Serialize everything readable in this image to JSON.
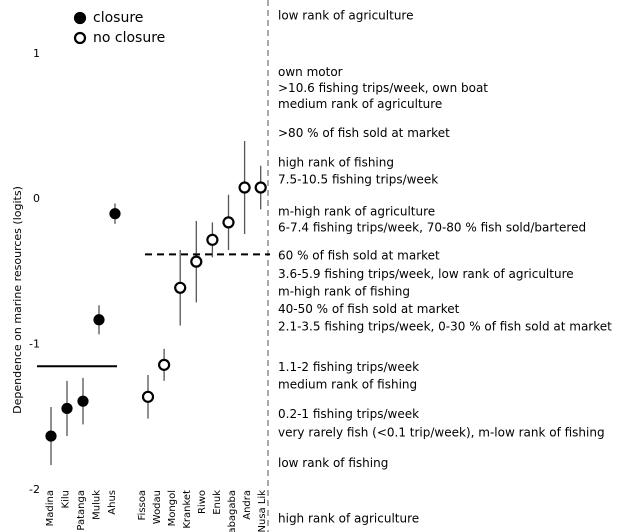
{
  "chart_data": {
    "type": "errorbar",
    "ylabel": "Dependence on marine resources (logits)",
    "ylim": [
      -2.29,
      1.37
    ],
    "yticks": [
      1,
      0,
      -1,
      -2
    ],
    "series": [
      {
        "name": "closure",
        "color": "#000000",
        "marker": "filled",
        "categories": [
          "Madina",
          "Kilu",
          "Patanga",
          "Muluk",
          "Ahus"
        ],
        "values": [
          -1.63,
          -1.44,
          -1.39,
          -0.83,
          -0.1
        ],
        "errors": [
          0.2,
          0.19,
          0.16,
          0.1,
          0.07
        ],
        "reference_line": {
          "value": -1.15,
          "style": "solid"
        }
      },
      {
        "name": "no closure",
        "color": "#000000",
        "marker": "open",
        "categories": [
          "Fissoa",
          "Wodau",
          "Mongol",
          "Kranket",
          "Riwo",
          "Enuk",
          "Gabagaba",
          "Andra",
          "Nusa Lik"
        ],
        "values": [
          -1.36,
          -1.14,
          -0.61,
          -0.43,
          -0.28,
          -0.16,
          0.08,
          0.08,
          null
        ],
        "errors": [
          0.15,
          0.11,
          0.26,
          0.28,
          0.12,
          0.19,
          0.32,
          0.15,
          null
        ],
        "reference_line": {
          "value": -0.38,
          "style": "dashed"
        }
      }
    ],
    "annotations": [
      {
        "text": "low rank of agriculture",
        "y": 1.26
      },
      {
        "text": "own motor",
        "y": 0.87
      },
      {
        "text": ">10.6 fishing trips/week,   own boat",
        "y": 0.76
      },
      {
        "text": "medium rank of agriculture",
        "y": 0.65
      },
      {
        "text": ">80 % of fish sold at market",
        "y": 0.45
      },
      {
        "text": "high rank of fishing",
        "y": 0.25
      },
      {
        "text": "7.5-10.5 fishing trips/week",
        "y": 0.13
      },
      {
        "text": "m-high rank of agriculture",
        "y": -0.09
      },
      {
        "text": "6-7.4 fishing trips/week, 70-80 % fish sold/bartered",
        "y": -0.2
      },
      {
        "text": "60 % of fish sold at market",
        "y": -0.39
      },
      {
        "text": "3.6-5.9 fishing trips/week, low rank of agriculture",
        "y": -0.52
      },
      {
        "text": "m-high rank of fishing",
        "y": -0.64
      },
      {
        "text": "40-50 % of fish sold at market",
        "y": -0.76
      },
      {
        "text": "2.1-3.5 fishing trips/week, 0-30 % of fish sold at market",
        "y": -0.88
      },
      {
        "text": "1.1-2 fishing trips/week",
        "y": -1.16
      },
      {
        "text": "medium rank of fishing",
        "y": -1.28
      },
      {
        "text": "0.2-1 fishing trips/week",
        "y": -1.48
      },
      {
        "text": "very rarely fish (<0.1 trip/week), m-low rank of fishing",
        "y": -1.61
      },
      {
        "text": "low rank of fishing",
        "y": -1.82
      },
      {
        "text": "high rank of agriculture",
        "y": -2.2
      }
    ]
  }
}
